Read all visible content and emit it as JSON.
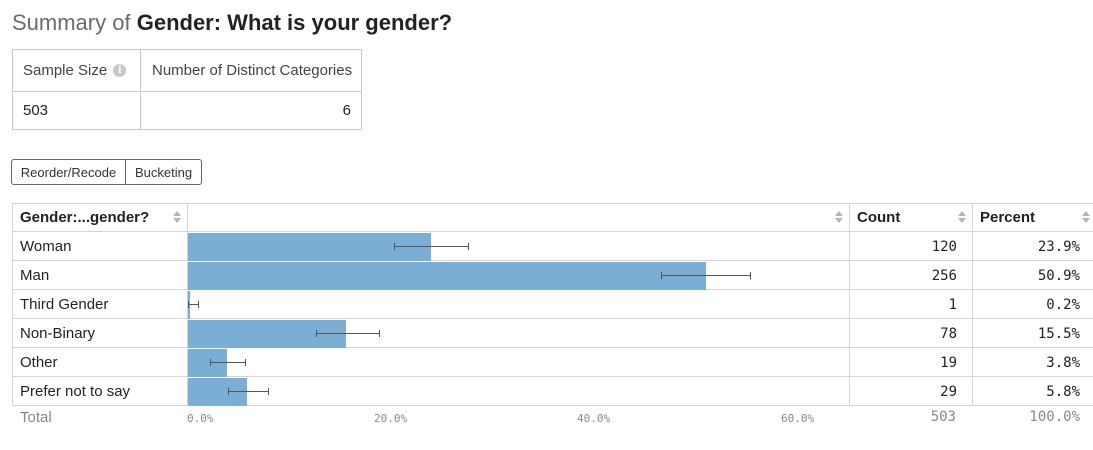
{
  "title": {
    "lead": "Summary of",
    "question": "Gender: What is your gender?"
  },
  "summary": {
    "sample_size_label": "Sample Size",
    "distinct_label": "Number of Distinct Categories",
    "sample_size_value": "503",
    "distinct_value": "6"
  },
  "buttons": {
    "reorder": "Reorder/Recode",
    "bucketing": "Bucketing"
  },
  "table": {
    "columns": {
      "category": "Gender:...gender?",
      "count": "Count",
      "percent": "Percent"
    },
    "rows": [
      {
        "label": "Woman",
        "count": "120",
        "percent": "23.9%"
      },
      {
        "label": "Man",
        "count": "256",
        "percent": "50.9%"
      },
      {
        "label": "Third Gender",
        "count": "1",
        "percent": "0.2%"
      },
      {
        "label": "Non-Binary",
        "count": "78",
        "percent": "15.5%"
      },
      {
        "label": "Other",
        "count": "19",
        "percent": "3.8%"
      },
      {
        "label": "Prefer not to say",
        "count": "29",
        "percent": "5.8%"
      }
    ],
    "total": {
      "label": "Total",
      "count": "503",
      "percent": "100.0%"
    },
    "axis_ticks": [
      "0.0%",
      "20.0%",
      "40.0%",
      "60.0%"
    ]
  },
  "chart_data": {
    "type": "bar",
    "orientation": "horizontal",
    "categories": [
      "Woman",
      "Man",
      "Third Gender",
      "Non-Binary",
      "Other",
      "Prefer not to say"
    ],
    "values": [
      23.9,
      50.9,
      0.2,
      15.5,
      3.8,
      5.8
    ],
    "error_bars": [
      [
        20.2,
        27.6
      ],
      [
        46.5,
        55.3
      ],
      [
        0.0,
        1.1
      ],
      [
        12.6,
        18.9
      ],
      [
        2.2,
        5.7
      ],
      [
        3.9,
        8.0
      ]
    ],
    "xlim": [
      0,
      65
    ],
    "x_ticks": [
      0,
      20,
      40,
      60
    ],
    "bar_color": "#7aaed5",
    "grid": false
  }
}
